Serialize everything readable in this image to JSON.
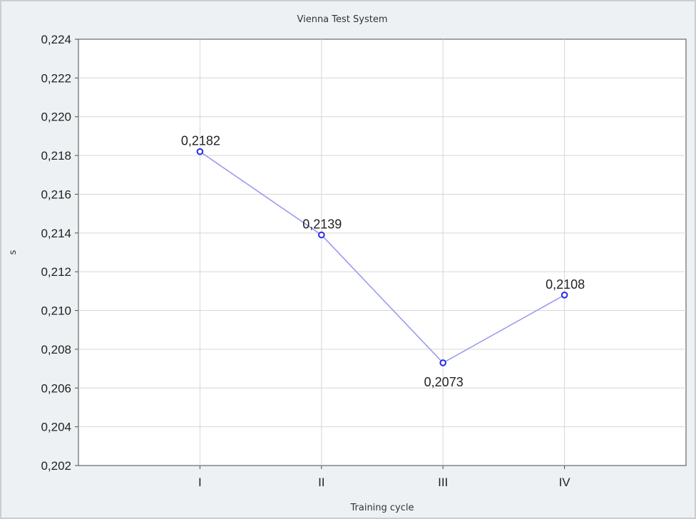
{
  "chart_data": {
    "type": "line",
    "title": "Vienna Test System",
    "xlabel": "Training cycle",
    "ylabel": "s",
    "categories": [
      "I",
      "II",
      "III",
      "IV"
    ],
    "series": [
      {
        "values": [
          0.2182,
          0.2139,
          0.2073,
          0.2108
        ],
        "labels": [
          "0,2182",
          "0,2139",
          "0,2073",
          "0,2108"
        ],
        "label_positions": [
          "above",
          "above",
          "below",
          "above"
        ]
      }
    ],
    "ylim": [
      0.202,
      0.224
    ],
    "yticks": [
      0.202,
      0.204,
      0.206,
      0.208,
      0.21,
      0.212,
      0.214,
      0.216,
      0.218,
      0.22,
      0.222,
      0.224
    ],
    "ytick_labels": [
      "0,202",
      "0,204",
      "0,206",
      "0,208",
      "0,210",
      "0,212",
      "0,214",
      "0,216",
      "0,218",
      "0,220",
      "0,222",
      "0,224"
    ],
    "grid": true,
    "colors": {
      "line": "#9a9af0",
      "marker": "#2a2ae8",
      "plot_background": "#ffffff",
      "grid": "#d6d6d6"
    }
  }
}
